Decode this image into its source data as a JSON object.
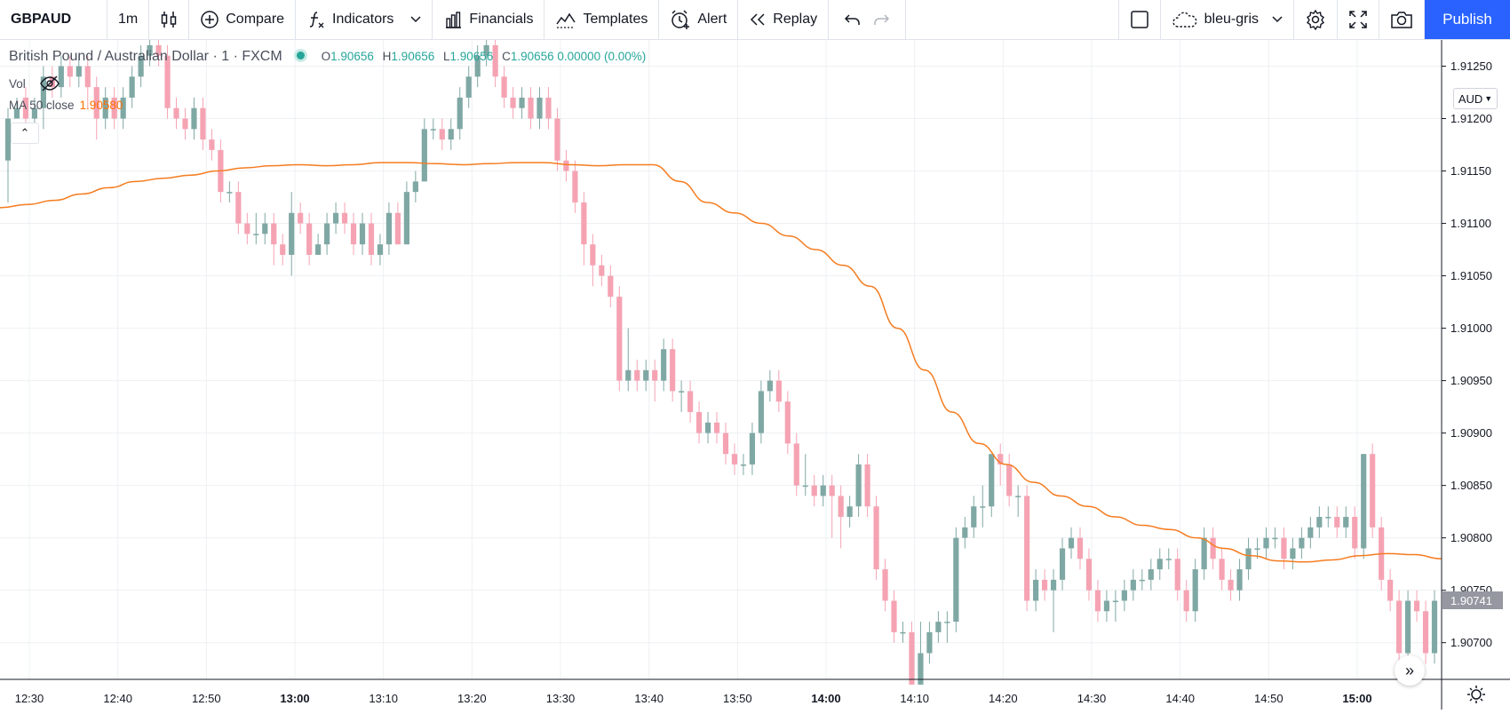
{
  "toolbar": {
    "symbol": "GBPAUD",
    "interval": "1m",
    "compare_label": "Compare",
    "indicators_label": "Indicators",
    "financials_label": "Financials",
    "templates_label": "Templates",
    "alert_label": "Alert",
    "replay_label": "Replay",
    "layout_name": "bleu-gris",
    "publish_label": "Publish"
  },
  "legend": {
    "title": "British Pound / Australian Dollar · 1 · FXCM",
    "o_key": "O",
    "o_val": "1.90656",
    "h_key": "H",
    "h_val": "1.90656",
    "l_key": "L",
    "l_val": "1.90656",
    "c_key": "C",
    "c_val": "1.90656 0.00000 (0.00%)"
  },
  "indicators": {
    "vol_label": "Vol",
    "ma_label": "MA 50 close",
    "ma_value": "1.90580"
  },
  "price_scale": {
    "currency": "AUD",
    "last_price": "1.90741",
    "labels": [
      "1.91250",
      "1.91200",
      "1.91150",
      "1.91100",
      "1.91050",
      "1.91000",
      "1.90950",
      "1.90900",
      "1.90850",
      "1.90800",
      "1.90750",
      "1.90700"
    ]
  },
  "time_scale": {
    "labels": [
      "12:30",
      "12:40",
      "12:50",
      "13:00",
      "13:10",
      "13:20",
      "13:30",
      "13:40",
      "13:50",
      "14:00",
      "14:10",
      "14:20",
      "14:30",
      "14:40",
      "14:50",
      "15:00"
    ],
    "bold": [
      "13:00",
      "14:00",
      "15:00"
    ]
  },
  "colors": {
    "up": "#7fa8a4",
    "down": "#f5a3b3",
    "ma": "#f57c20",
    "grid": "#eef0f3",
    "accent": "#2962ff"
  },
  "chart_data": {
    "type": "candlestick",
    "y_range": [
      1.90665,
      1.91275
    ],
    "ma_name": "MA 50 close",
    "price": [
      [
        1.9116,
        1.912,
        1.9112,
        1.9121
      ],
      [
        1.912,
        1.9121,
        1.912,
        1.9122
      ],
      [
        1.9122,
        1.912,
        1.9119,
        1.9123
      ],
      [
        1.912,
        1.9121,
        1.9119,
        1.9122
      ],
      [
        1.9121,
        1.9124,
        1.9119,
        1.9125
      ],
      [
        1.9124,
        1.9123,
        1.9122,
        1.9125
      ],
      [
        1.9123,
        1.9125,
        1.9122,
        1.9126
      ],
      [
        1.9125,
        1.9124,
        1.9123,
        1.9126
      ],
      [
        1.9124,
        1.9125,
        1.9123,
        1.9126
      ],
      [
        1.9125,
        1.9123,
        1.9121,
        1.9126
      ],
      [
        1.9123,
        1.912,
        1.9118,
        1.9124
      ],
      [
        1.912,
        1.9122,
        1.9119,
        1.9123
      ],
      [
        1.9122,
        1.912,
        1.9119,
        1.9123
      ],
      [
        1.912,
        1.9122,
        1.9119,
        1.9123
      ],
      [
        1.9122,
        1.9124,
        1.9121,
        1.9125
      ],
      [
        1.9124,
        1.9126,
        1.9123,
        1.9127
      ],
      [
        1.9126,
        1.9127,
        1.9125,
        1.9128
      ],
      [
        1.9127,
        1.9126,
        1.9125,
        1.9128
      ],
      [
        1.9126,
        1.9121,
        1.912,
        1.9127
      ],
      [
        1.9121,
        1.912,
        1.9119,
        1.9122
      ],
      [
        1.912,
        1.9119,
        1.9118,
        1.9121
      ],
      [
        1.9119,
        1.9121,
        1.9118,
        1.9122
      ],
      [
        1.9121,
        1.9118,
        1.9117,
        1.9122
      ],
      [
        1.9118,
        1.9117,
        1.9116,
        1.9119
      ],
      [
        1.9117,
        1.9113,
        1.9112,
        1.9118
      ],
      [
        1.9113,
        1.9113,
        1.9112,
        1.9114
      ],
      [
        1.9113,
        1.911,
        1.9109,
        1.9114
      ],
      [
        1.911,
        1.9109,
        1.9108,
        1.9111
      ],
      [
        1.9109,
        1.9109,
        1.9108,
        1.9111
      ],
      [
        1.9109,
        1.911,
        1.9108,
        1.9111
      ],
      [
        1.911,
        1.9108,
        1.9106,
        1.9111
      ],
      [
        1.9108,
        1.9107,
        1.9106,
        1.9109
      ],
      [
        1.9107,
        1.9111,
        1.9105,
        1.9113
      ],
      [
        1.9111,
        1.911,
        1.9109,
        1.9112
      ],
      [
        1.911,
        1.9107,
        1.9106,
        1.9111
      ],
      [
        1.9107,
        1.9108,
        1.9107,
        1.9109
      ],
      [
        1.9108,
        1.911,
        1.9107,
        1.9111
      ],
      [
        1.911,
        1.9111,
        1.9109,
        1.9112
      ],
      [
        1.9111,
        1.911,
        1.9109,
        1.9112
      ],
      [
        1.911,
        1.9108,
        1.9107,
        1.9111
      ],
      [
        1.9108,
        1.911,
        1.9107,
        1.9111
      ],
      [
        1.911,
        1.9107,
        1.9106,
        1.9111
      ],
      [
        1.9107,
        1.9108,
        1.9106,
        1.9109
      ],
      [
        1.9108,
        1.9111,
        1.9107,
        1.9112
      ],
      [
        1.9111,
        1.9108,
        1.9108,
        1.9112
      ],
      [
        1.9108,
        1.9113,
        1.9108,
        1.9114
      ],
      [
        1.9113,
        1.9114,
        1.9112,
        1.9115
      ],
      [
        1.9114,
        1.9119,
        1.9114,
        1.912
      ],
      [
        1.9119,
        1.9119,
        1.9118,
        1.912
      ],
      [
        1.9119,
        1.9118,
        1.9117,
        1.912
      ],
      [
        1.9118,
        1.9119,
        1.9117,
        1.912
      ],
      [
        1.9119,
        1.9122,
        1.9118,
        1.9123
      ],
      [
        1.9122,
        1.9124,
        1.9121,
        1.9125
      ],
      [
        1.9124,
        1.9126,
        1.9123,
        1.9127
      ],
      [
        1.9126,
        1.9127,
        1.9125,
        1.9128
      ],
      [
        1.9127,
        1.9124,
        1.9123,
        1.9128
      ],
      [
        1.9124,
        1.9122,
        1.9121,
        1.9125
      ],
      [
        1.9122,
        1.9121,
        1.912,
        1.9123
      ],
      [
        1.9121,
        1.9122,
        1.912,
        1.9123
      ],
      [
        1.9122,
        1.912,
        1.9119,
        1.9123
      ],
      [
        1.912,
        1.9122,
        1.9119,
        1.9123
      ],
      [
        1.9122,
        1.912,
        1.9119,
        1.9123
      ],
      [
        1.912,
        1.9116,
        1.9115,
        1.9121
      ],
      [
        1.9116,
        1.9115,
        1.9114,
        1.9117
      ],
      [
        1.9115,
        1.9112,
        1.9111,
        1.9116
      ],
      [
        1.9112,
        1.9108,
        1.9106,
        1.9113
      ],
      [
        1.9108,
        1.9106,
        1.9104,
        1.9109
      ],
      [
        1.9106,
        1.9105,
        1.9104,
        1.9107
      ],
      [
        1.9105,
        1.9103,
        1.9102,
        1.9106
      ],
      [
        1.9103,
        1.9095,
        1.9094,
        1.9104
      ],
      [
        1.9095,
        1.9096,
        1.9094,
        1.91
      ],
      [
        1.9096,
        1.9095,
        1.9094,
        1.9097
      ],
      [
        1.9095,
        1.9096,
        1.9094,
        1.9097
      ],
      [
        1.9096,
        1.9095,
        1.9093,
        1.9097
      ],
      [
        1.9095,
        1.9098,
        1.9094,
        1.9099
      ],
      [
        1.9098,
        1.9094,
        1.9093,
        1.9099
      ],
      [
        1.9094,
        1.9094,
        1.9092,
        1.9095
      ],
      [
        1.9094,
        1.9092,
        1.9091,
        1.9095
      ],
      [
        1.9092,
        1.909,
        1.9089,
        1.9093
      ],
      [
        1.909,
        1.9091,
        1.9089,
        1.9092
      ],
      [
        1.9091,
        1.909,
        1.9089,
        1.9092
      ],
      [
        1.909,
        1.9088,
        1.9087,
        1.9091
      ],
      [
        1.9088,
        1.9087,
        1.9086,
        1.9089
      ],
      [
        1.9087,
        1.9087,
        1.9086,
        1.9088
      ],
      [
        1.9087,
        1.909,
        1.9086,
        1.9091
      ],
      [
        1.909,
        1.9094,
        1.9089,
        1.9095
      ],
      [
        1.9094,
        1.9095,
        1.9093,
        1.9096
      ],
      [
        1.9095,
        1.9093,
        1.9092,
        1.9096
      ],
      [
        1.9093,
        1.9089,
        1.9088,
        1.9094
      ],
      [
        1.9089,
        1.9085,
        1.9084,
        1.909
      ],
      [
        1.9085,
        1.9085,
        1.9084,
        1.9088
      ],
      [
        1.9085,
        1.9084,
        1.9083,
        1.9086
      ],
      [
        1.9084,
        1.9085,
        1.9083,
        1.9086
      ],
      [
        1.9085,
        1.9084,
        1.908,
        1.9086
      ],
      [
        1.9084,
        1.9082,
        1.9079,
        1.9085
      ],
      [
        1.9082,
        1.9083,
        1.9081,
        1.9084
      ],
      [
        1.9083,
        1.9087,
        1.9082,
        1.9088
      ],
      [
        1.9087,
        1.9083,
        1.9082,
        1.9088
      ],
      [
        1.9083,
        1.9077,
        1.9076,
        1.9084
      ],
      [
        1.9077,
        1.9074,
        1.9073,
        1.9078
      ],
      [
        1.9074,
        1.9071,
        1.907,
        1.9075
      ],
      [
        1.9071,
        1.9071,
        1.907,
        1.9072
      ],
      [
        1.9071,
        1.9066,
        1.9066,
        1.9072
      ],
      [
        1.9066,
        1.9069,
        1.9066,
        1.9072
      ],
      [
        1.9069,
        1.9071,
        1.9068,
        1.9072
      ],
      [
        1.9071,
        1.9072,
        1.907,
        1.9073
      ],
      [
        1.9072,
        1.9072,
        1.907,
        1.9073
      ],
      [
        1.9072,
        1.908,
        1.9071,
        1.9081
      ],
      [
        1.908,
        1.9081,
        1.9079,
        1.9082
      ],
      [
        1.9081,
        1.9083,
        1.908,
        1.9084
      ],
      [
        1.9083,
        1.9083,
        1.9081,
        1.9085
      ],
      [
        1.9083,
        1.9088,
        1.9082,
        1.9088
      ],
      [
        1.9088,
        1.9087,
        1.9085,
        1.9089
      ],
      [
        1.9087,
        1.9084,
        1.9083,
        1.9088
      ],
      [
        1.9084,
        1.9084,
        1.9082,
        1.9085
      ],
      [
        1.9084,
        1.9074,
        1.9073,
        1.9085
      ],
      [
        1.9074,
        1.9076,
        1.9073,
        1.9077
      ],
      [
        1.9076,
        1.9075,
        1.9074,
        1.9077
      ],
      [
        1.9075,
        1.9076,
        1.9071,
        1.9077
      ],
      [
        1.9076,
        1.9079,
        1.9075,
        1.908
      ],
      [
        1.9079,
        1.908,
        1.9078,
        1.9081
      ],
      [
        1.908,
        1.9078,
        1.9077,
        1.9081
      ],
      [
        1.9078,
        1.9075,
        1.9074,
        1.9079
      ],
      [
        1.9075,
        1.9073,
        1.9072,
        1.9076
      ],
      [
        1.9073,
        1.9074,
        1.9072,
        1.9075
      ],
      [
        1.9074,
        1.9074,
        1.9072,
        1.9075
      ],
      [
        1.9074,
        1.9075,
        1.9073,
        1.9076
      ],
      [
        1.9075,
        1.9076,
        1.9074,
        1.9077
      ],
      [
        1.9076,
        1.9076,
        1.9075,
        1.9077
      ],
      [
        1.9076,
        1.9077,
        1.9075,
        1.9078
      ],
      [
        1.9077,
        1.9078,
        1.9076,
        1.9079
      ],
      [
        1.9078,
        1.9078,
        1.9077,
        1.9079
      ],
      [
        1.9078,
        1.9075,
        1.9074,
        1.9079
      ],
      [
        1.9075,
        1.9073,
        1.9072,
        1.9076
      ],
      [
        1.9073,
        1.9077,
        1.9072,
        1.9078
      ],
      [
        1.9077,
        1.908,
        1.9076,
        1.9081
      ],
      [
        1.908,
        1.9078,
        1.9077,
        1.9081
      ],
      [
        1.9078,
        1.9076,
        1.9075,
        1.9079
      ],
      [
        1.9076,
        1.9075,
        1.9074,
        1.9077
      ],
      [
        1.9075,
        1.9077,
        1.9074,
        1.9078
      ],
      [
        1.9077,
        1.9079,
        1.9076,
        1.908
      ],
      [
        1.9079,
        1.9079,
        1.9078,
        1.908
      ],
      [
        1.9079,
        1.908,
        1.9078,
        1.9081
      ],
      [
        1.908,
        1.908,
        1.9079,
        1.9081
      ],
      [
        1.908,
        1.9078,
        1.9077,
        1.9081
      ],
      [
        1.9078,
        1.9079,
        1.9077,
        1.908
      ],
      [
        1.9079,
        1.908,
        1.9078,
        1.9081
      ],
      [
        1.908,
        1.9081,
        1.9079,
        1.9082
      ],
      [
        1.9081,
        1.9082,
        1.908,
        1.9083
      ],
      [
        1.9082,
        1.9082,
        1.9081,
        1.9083
      ],
      [
        1.9082,
        1.9081,
        1.908,
        1.9083
      ],
      [
        1.9081,
        1.9082,
        1.908,
        1.9083
      ],
      [
        1.9082,
        1.9079,
        1.9078,
        1.9083
      ],
      [
        1.9079,
        1.9088,
        1.9078,
        1.9088
      ],
      [
        1.9088,
        1.9081,
        1.908,
        1.9089
      ],
      [
        1.9081,
        1.9076,
        1.9075,
        1.9082
      ],
      [
        1.9076,
        1.9074,
        1.9073,
        1.9077
      ],
      [
        1.9074,
        1.9069,
        1.9068,
        1.9075
      ],
      [
        1.9069,
        1.9074,
        1.9068,
        1.9075
      ],
      [
        1.9074,
        1.9073,
        1.9072,
        1.9075
      ],
      [
        1.9073,
        1.9069,
        1.9068,
        1.9074
      ],
      [
        1.9069,
        1.9074,
        1.9068,
        1.9075
      ]
    ],
    "ma": [
      1.91115,
      1.91118,
      1.91122,
      1.91128,
      1.91134,
      1.9114,
      1.91143,
      1.91146,
      1.9115,
      1.91153,
      1.91155,
      1.91156,
      1.91155,
      1.91156,
      1.91158,
      1.91158,
      1.91157,
      1.91156,
      1.91157,
      1.91158,
      1.91158,
      1.91156,
      1.91155,
      1.91156,
      1.91156,
      1.9114,
      1.9112,
      1.9111,
      1.911,
      1.91088,
      1.91075,
      1.9106,
      1.9104,
      1.91,
      1.9096,
      1.9092,
      1.9089,
      1.9087,
      1.90853,
      1.9084,
      1.9083,
      1.9082,
      1.90812,
      1.90808,
      1.908,
      1.9079,
      1.90783,
      1.90778,
      1.90777,
      1.90779,
      1.90783,
      1.90785,
      1.90784,
      1.9078
    ]
  }
}
